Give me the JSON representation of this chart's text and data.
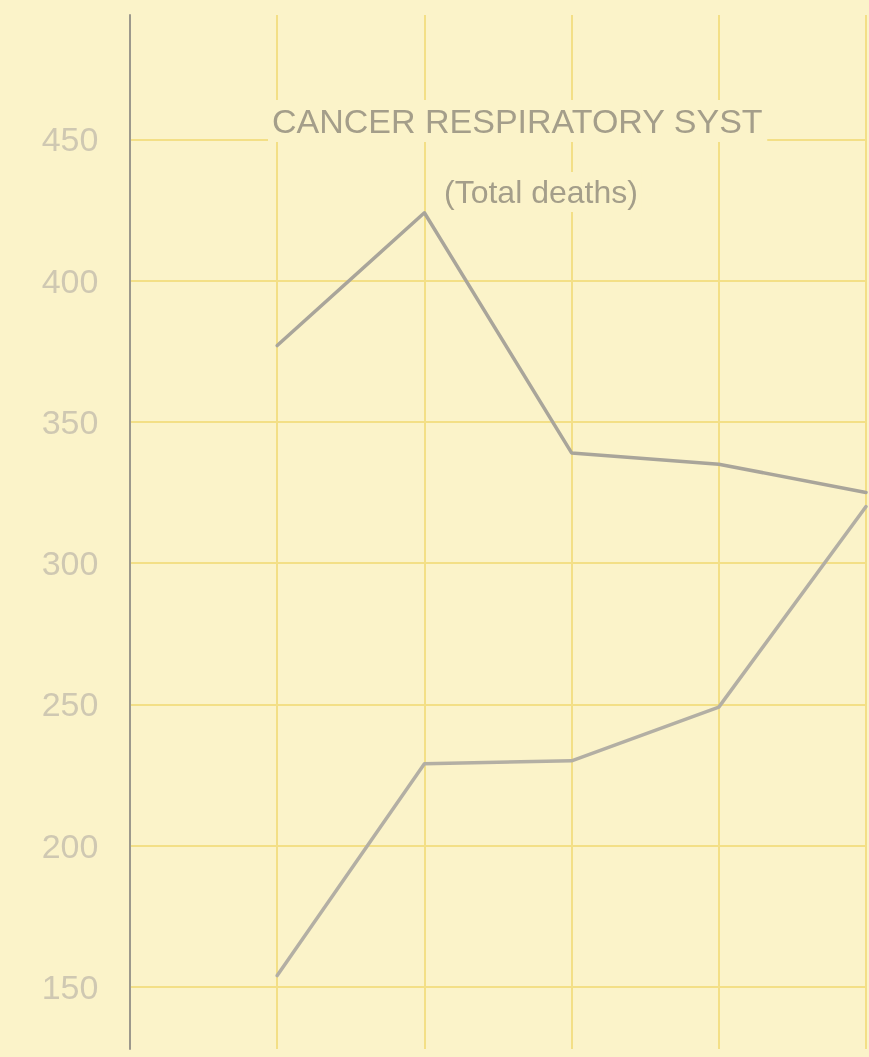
{
  "chart_data": {
    "type": "line",
    "title": "CANCER RESPIRATORY SYST",
    "subtitle": "(Total deaths)",
    "categories": [
      null,
      null,
      null,
      null,
      null,
      null
    ],
    "series": [
      {
        "color": "#a9a59a",
        "values": [
          null,
          377,
          424,
          339,
          335,
          325
        ]
      },
      {
        "color": "#b3afa4",
        "values": [
          null,
          154,
          229,
          230,
          249,
          320
        ]
      }
    ],
    "ylim": [
      128,
      494
    ],
    "yticks": [
      150,
      200,
      250,
      300,
      350,
      400,
      450
    ],
    "grid": true,
    "marker": "none",
    "line_style": "solid"
  }
}
